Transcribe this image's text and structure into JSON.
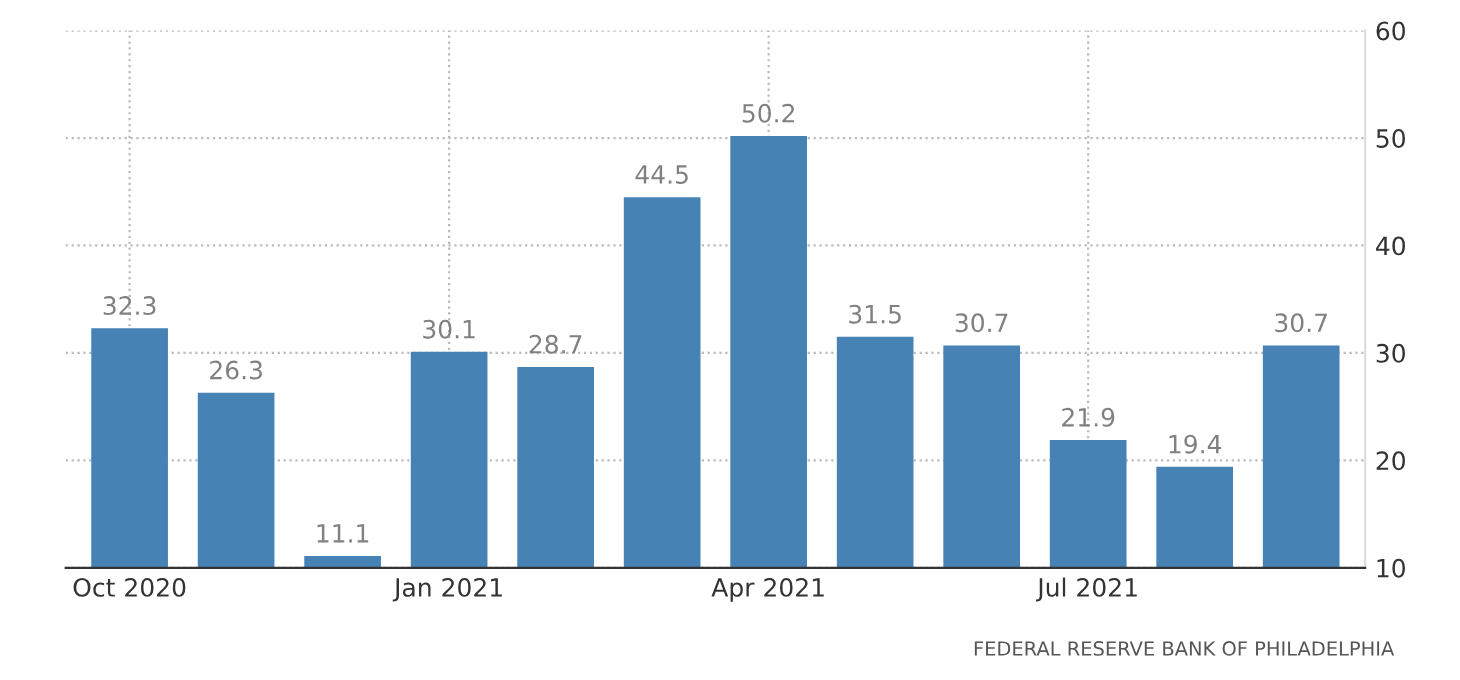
{
  "chart_data": {
    "type": "bar",
    "categories": [
      "Oct 2020",
      null,
      null,
      "Jan 2021",
      null,
      null,
      "Apr 2021",
      null,
      null,
      "Jul 2021",
      null,
      null
    ],
    "values": [
      32.3,
      26.3,
      11.1,
      30.1,
      28.7,
      44.5,
      50.2,
      31.5,
      30.7,
      21.9,
      19.4,
      30.7
    ],
    "color": "#4682b4",
    "ylim": [
      10,
      60
    ],
    "yticks": [
      10,
      20,
      30,
      40,
      50,
      60
    ],
    "grid": true,
    "data_labels": true,
    "annotations": [
      "FEDERAL RESERVE BANK OF PHILADELPHIA"
    ]
  }
}
